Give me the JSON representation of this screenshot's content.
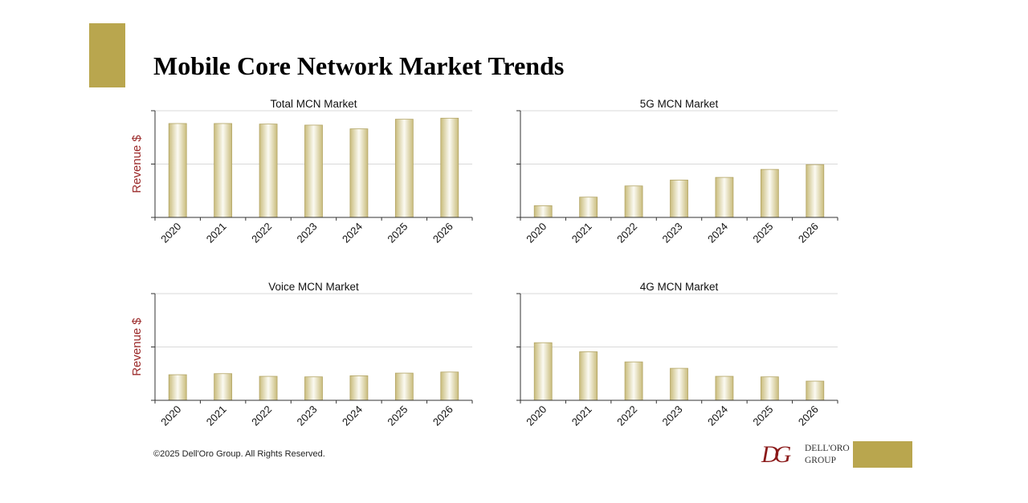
{
  "title": "Mobile Core Network Market Trends",
  "footer": {
    "copyright": "©2025 Dell'Oro Group. All Rights Reserved.",
    "logo_line1": "DELL'ORO",
    "logo_line2": "GROUP",
    "logo_mark": "DG"
  },
  "colors": {
    "accent": "#b9a64e",
    "bar_light": "#fbfaf2",
    "bar_dark": "#c9bc7c",
    "ylabel": "#9b2a2a"
  },
  "chart_data": [
    {
      "type": "bar",
      "title": "Total MCN Market",
      "ylabel": "Revenue $",
      "categories": [
        "2020",
        "2021",
        "2022",
        "2023",
        "2024",
        "2025",
        "2026"
      ],
      "values": [
        88,
        88,
        87.5,
        86.5,
        83,
        92,
        93
      ],
      "ylim": [
        0,
        100
      ],
      "grid": true
    },
    {
      "type": "bar",
      "title": "5G MCN Market",
      "ylabel": "",
      "categories": [
        "2020",
        "2021",
        "2022",
        "2023",
        "2024",
        "2025",
        "2026"
      ],
      "values": [
        11,
        19,
        29.5,
        35,
        37.5,
        45,
        49.5
      ],
      "ylim": [
        0,
        100
      ],
      "grid": true
    },
    {
      "type": "bar",
      "title": "Voice MCN Market",
      "ylabel": "Revenue $",
      "categories": [
        "2020",
        "2021",
        "2022",
        "2023",
        "2024",
        "2025",
        "2026"
      ],
      "values": [
        24,
        25,
        22.5,
        22,
        23,
        25.5,
        26.5
      ],
      "ylim": [
        0,
        100
      ],
      "grid": true
    },
    {
      "type": "bar",
      "title": "4G MCN Market",
      "ylabel": "",
      "categories": [
        "2020",
        "2021",
        "2022",
        "2023",
        "2024",
        "2025",
        "2026"
      ],
      "values": [
        54,
        45.5,
        36,
        30,
        22.5,
        22,
        18
      ],
      "ylim": [
        0,
        100
      ],
      "grid": true
    }
  ]
}
